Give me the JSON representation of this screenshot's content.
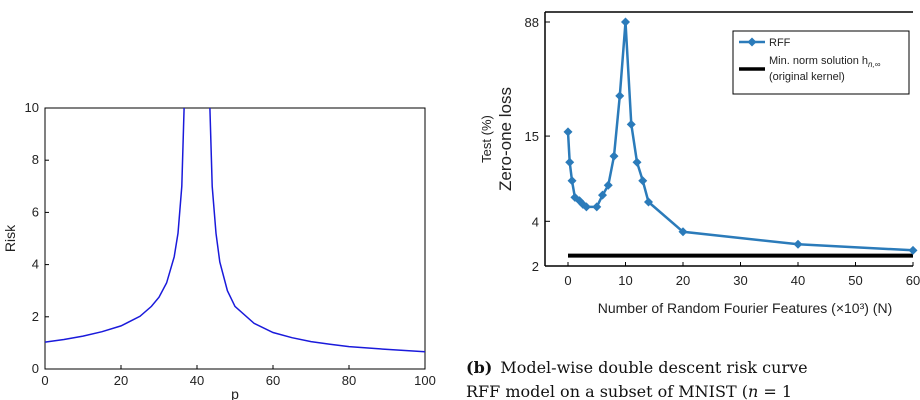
{
  "chart_data": [
    {
      "type": "line",
      "xlabel": "p",
      "ylabel": "Risk",
      "xlim": [
        0,
        100
      ],
      "ylim": [
        0,
        10
      ],
      "x_ticks": [
        "0",
        "20",
        "40",
        "60",
        "80",
        "100"
      ],
      "y_ticks": [
        "0",
        "2",
        "4",
        "6",
        "8",
        "10"
      ],
      "grid": false,
      "line_color": "#1a1adb",
      "series": [
        {
          "x": [
            0,
            5,
            10,
            15,
            20,
            25,
            28,
            30,
            32,
            34,
            35,
            36,
            36.6,
            43.4,
            44,
            45,
            46,
            48,
            50,
            55,
            60,
            65,
            70,
            75,
            80,
            90,
            100
          ],
          "y": [
            1.03,
            1.13,
            1.26,
            1.43,
            1.65,
            2.02,
            2.4,
            2.75,
            3.3,
            4.3,
            5.2,
            7.0,
            10,
            10,
            7.0,
            5.2,
            4.1,
            3.0,
            2.4,
            1.75,
            1.4,
            1.2,
            1.05,
            0.95,
            0.86,
            0.75,
            0.66
          ]
        }
      ]
    },
    {
      "type": "line",
      "xlabel": "Number of Random Fourier Features (×10³) (N)",
      "ylabel_lines": [
        "Test (%)",
        "Zero-one loss"
      ],
      "xlim": [
        0,
        60
      ],
      "y_scale": "log",
      "ylim": [
        2,
        88
      ],
      "x_ticks": [
        "0",
        "10",
        "20",
        "30",
        "40",
        "50",
        "60"
      ],
      "y_ticks": [
        "2",
        "4",
        "15",
        "88"
      ],
      "legend_position": "top-right",
      "grid": false,
      "series": [
        {
          "name": "RFF",
          "color": "#2b7bba",
          "marker": "diamond",
          "x": [
            0,
            0.3,
            0.7,
            1.2,
            2,
            2.6,
            3.2,
            5,
            6,
            7,
            8,
            9,
            10,
            11,
            12,
            13,
            14,
            20,
            40,
            60
          ],
          "y": [
            16,
            10,
            7.5,
            5.8,
            5.5,
            5.2,
            5.0,
            5.0,
            6.0,
            7.0,
            11,
            28,
            88,
            18,
            10,
            7.5,
            5.4,
            3.4,
            2.8,
            2.55
          ]
        },
        {
          "name": "Min. norm solution h",
          "name_subscript": "n,∞",
          "name_line2": "(original kernel)",
          "color": "#000000",
          "x": [
            0,
            60
          ],
          "y": [
            2.35,
            2.35
          ]
        }
      ]
    }
  ],
  "caption": {
    "label": "(b)",
    "line1": "Model-wise double descent risk curve",
    "line2_a": "RFF model on a subset of MNIST (",
    "line2_var": "n",
    "line2_b": " = 1"
  }
}
